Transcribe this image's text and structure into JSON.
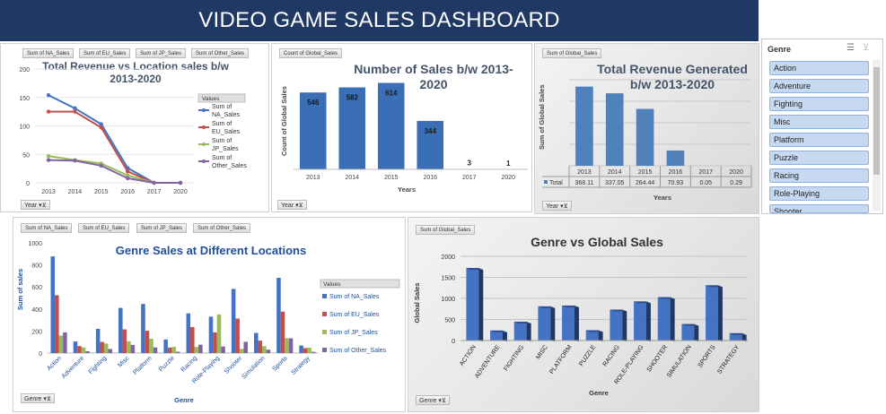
{
  "dashboard": {
    "title": "VIDEO GAME SALES DASHBOARD",
    "header_color": "#1F3864",
    "bar_color": "#4472C4"
  },
  "panel1": {
    "field_buttons": [
      "Sum of NA_Sales",
      "Sum of EU_Sales",
      "Sum of JP_Sales",
      "Sum of Other_Sales"
    ],
    "title_line1": "Total Revenue vs Location sales b/w",
    "title_line2": "2013-2020",
    "filter": "Year",
    "legend_title": "Values",
    "chart_data": {
      "type": "line",
      "categories": [
        "2013",
        "2014",
        "2015",
        "2016",
        "2017",
        "2020"
      ],
      "series": [
        {
          "name": "Sum of NA_Sales",
          "color": "#4472C4",
          "values": [
            154,
            131,
            103,
            26,
            0,
            0
          ]
        },
        {
          "name": "Sum of EU_Sales",
          "color": "#C0504D",
          "values": [
            125,
            125,
            97,
            20,
            0,
            0
          ]
        },
        {
          "name": "Sum of JP_Sales",
          "color": "#9BBB59",
          "values": [
            47,
            40,
            34,
            13,
            0,
            0
          ]
        },
        {
          "name": "Sum of Other_Sales",
          "color": "#8064A2",
          "values": [
            40,
            39,
            30,
            8,
            0,
            0
          ]
        }
      ],
      "ylim": [
        0,
        200
      ],
      "yticks": [
        "0",
        "50",
        "100",
        "150",
        "200"
      ]
    }
  },
  "panel2": {
    "field_button": "Count of Global_Sales",
    "title_line1": "Number of Sales b/w 2013-",
    "title_line2": "2020",
    "ylabel": "Count of Global Sales",
    "xlabel": "Years",
    "filter": "Year",
    "chart_data": {
      "type": "bar",
      "categories": [
        "2013",
        "2014",
        "2015",
        "2016",
        "2017",
        "2020"
      ],
      "values": [
        546,
        582,
        614,
        344,
        3,
        1
      ],
      "data_labels": [
        "546",
        "582",
        "614",
        "344",
        "3",
        "1"
      ],
      "ylim": [
        0,
        700
      ]
    }
  },
  "panel3": {
    "field_button": "Sum of Global_Sales",
    "title_line1": "Total Revenue Generated",
    "title_line2": "b/w 2013-2020",
    "ylabel": "Sum of Global Sales",
    "xlabel": "Years",
    "filter": "Year",
    "table_row_label": "Total",
    "chart_data": {
      "type": "bar",
      "categories": [
        "2013",
        "2014",
        "2015",
        "2016",
        "2017",
        "2020"
      ],
      "values": [
        368.11,
        337.05,
        264.44,
        70.93,
        0.05,
        0.29
      ],
      "table_values": [
        "368.11",
        "337.05",
        "264.44",
        "70.93",
        "0.05",
        "0.29"
      ],
      "ylim": [
        0,
        400
      ]
    }
  },
  "slicer": {
    "header": "Genre",
    "items": [
      "Action",
      "Adventure",
      "Fighting",
      "Misc",
      "Platform",
      "Puzzle",
      "Racing",
      "Role-Playing",
      "Shooter"
    ]
  },
  "panel4": {
    "field_buttons": [
      "Sum of NA_Sales",
      "Sum of EU_Sales",
      "Sum of JP_Sales",
      "Sum of Other_Sales"
    ],
    "title": "Genre Sales at Different Locations",
    "ylabel": "Sum of sales",
    "xlabel": "Genre",
    "filter": "Genre",
    "legend_title": "Values",
    "chart_data": {
      "type": "bar",
      "categories": [
        "Action",
        "Adventure",
        "Fighting",
        "Misc",
        "Platform",
        "Puzzle",
        "Racing",
        "Role-Playing",
        "Shooter",
        "Simulation",
        "Sports",
        "Strategy"
      ],
      "series": [
        {
          "name": "Sum of NA_Sales",
          "color": "#4472C4",
          "values": [
            877,
            105,
            220,
            410,
            446,
            123,
            360,
            330,
            582,
            183,
            683,
            68
          ]
        },
        {
          "name": "Sum of EU_Sales",
          "color": "#C0504D",
          "values": [
            525,
            64,
            101,
            215,
            202,
            50,
            236,
            188,
            313,
            113,
            376,
            45
          ]
        },
        {
          "name": "Sum of JP_Sales",
          "color": "#9BBB59",
          "values": [
            159,
            52,
            87,
            107,
            130,
            56,
            56,
            350,
            38,
            63,
            135,
            49
          ]
        },
        {
          "name": "Sum of Other_Sales",
          "color": "#8064A2",
          "values": [
            187,
            17,
            37,
            74,
            51,
            12,
            76,
            59,
            102,
            31,
            134,
            11
          ]
        }
      ],
      "ylim": [
        0,
        1000
      ],
      "yticks": [
        "0",
        "200",
        "400",
        "600",
        "800",
        "1000"
      ]
    }
  },
  "panel5": {
    "field_button": "Sum of Global_Sales",
    "title": "Genre vs Global Sales",
    "ylabel": "Global Sales",
    "xlabel": "Genre",
    "filter": "Genre",
    "chart_data": {
      "type": "bar",
      "categories": [
        "ACTION",
        "ADVENTURE",
        "FIGHTING",
        "MISC",
        "PLATFORM",
        "PUZZLE",
        "RACING",
        "ROLE-PLAYING",
        "SHOOTER",
        "SIMULATION",
        "SPORTS",
        "STRATEGY"
      ],
      "values": [
        1722,
        238,
        448,
        810,
        831,
        245,
        733,
        928,
        1028,
        392,
        1310,
        174
      ],
      "ylim": [
        0,
        2000
      ],
      "yticks": [
        "0",
        "500",
        "1000",
        "1500",
        "2000"
      ]
    }
  }
}
